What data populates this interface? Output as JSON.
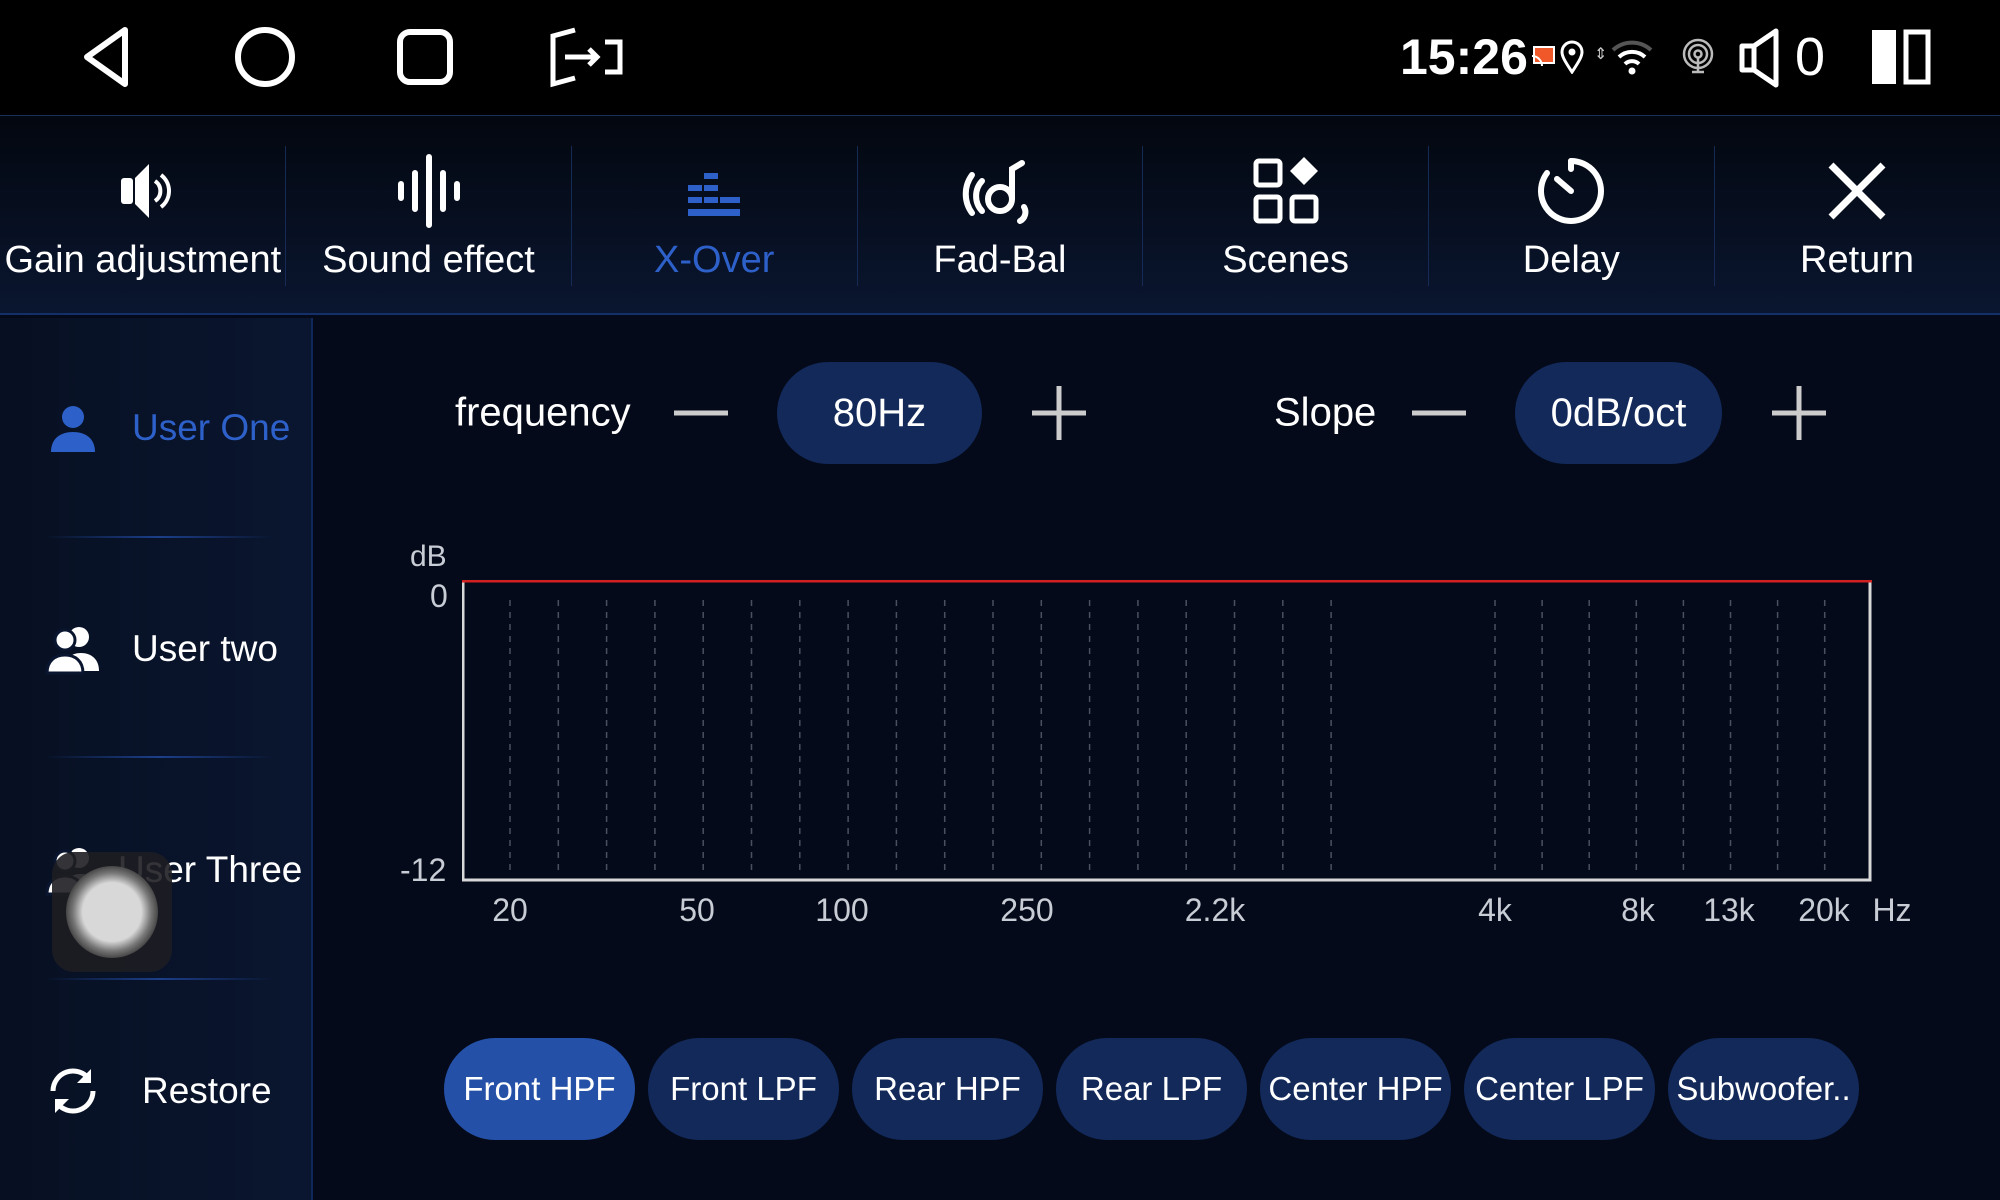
{
  "status_bar": {
    "time": "15:26",
    "volume": "0",
    "icons": [
      "back-icon",
      "home-icon",
      "recents-icon",
      "screen-split-icon",
      "cast-icon",
      "location-icon",
      "data-arrows-icon",
      "wifi-icon",
      "hotspot-icon",
      "speaker-icon",
      "split-screen-icon"
    ],
    "cast_color": "#f0582a"
  },
  "tabs": [
    {
      "label": "Gain adjustment",
      "icon": "speaker-icon"
    },
    {
      "label": "Sound effect",
      "icon": "waveform-icon"
    },
    {
      "label": "X-Over",
      "icon": "equalizer-icon",
      "active": true
    },
    {
      "label": "Fad-Bal",
      "icon": "fader-balance-icon"
    },
    {
      "label": "Scenes",
      "icon": "scenes-icon"
    },
    {
      "label": "Delay",
      "icon": "timer-icon"
    },
    {
      "label": "Return",
      "icon": "close-icon"
    }
  ],
  "sidebar": {
    "items": [
      {
        "label": "User One",
        "active": true,
        "icon": "user-icon"
      },
      {
        "label": "User two",
        "icon": "users-icon"
      },
      {
        "label": "User Three",
        "icon": "users-icon"
      },
      {
        "label": "Restore",
        "icon": "refresh-icon"
      }
    ]
  },
  "controls": {
    "frequency_label": "frequency",
    "frequency_value": "80Hz",
    "slope_label": "Slope",
    "slope_value": "0dB/oct"
  },
  "channels": [
    {
      "label": "Front HPF",
      "active": true
    },
    {
      "label": "Front LPF"
    },
    {
      "label": "Rear HPF"
    },
    {
      "label": "Rear LPF"
    },
    {
      "label": "Center HPF"
    },
    {
      "label": "Center LPF"
    },
    {
      "label": "Subwoofer.."
    }
  ],
  "colors": {
    "accent": "#2d60c8",
    "background": "#040a1a",
    "pill": "#12295a",
    "pill_active": "#2550a8",
    "curve": "#d02020"
  },
  "chart_data": {
    "type": "line",
    "ylabel": "dB",
    "xlabel": "Hz",
    "ylim": [
      -12,
      0
    ],
    "y_ticks": [
      "0",
      "-12"
    ],
    "x_ticks": [
      "20",
      "50",
      "100",
      "250",
      "2.2k",
      "4k",
      "8k",
      "13k",
      "20k"
    ],
    "grid": "vertical dashed",
    "series": [
      {
        "x": [
          "20",
          "20k"
        ],
        "values": [
          0,
          0
        ]
      }
    ]
  }
}
